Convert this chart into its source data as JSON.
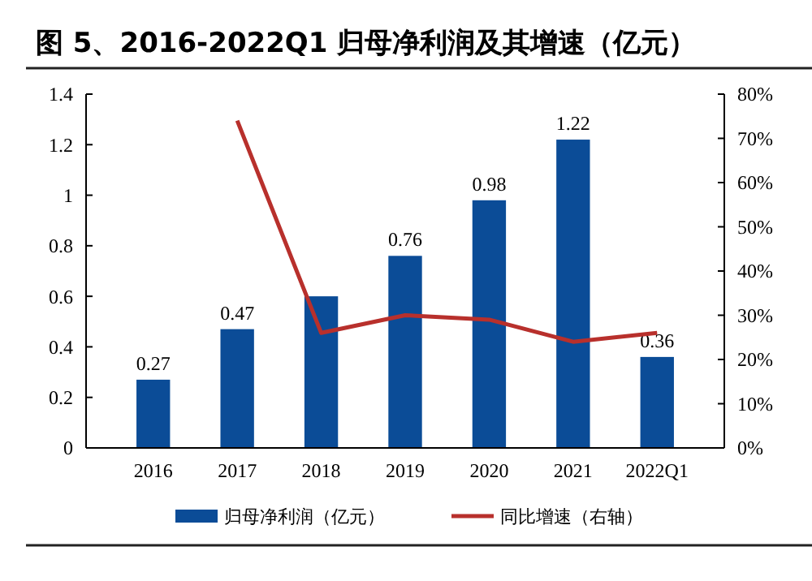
{
  "chart_data": {
    "type": "bar",
    "title": "图 5、2016-2022Q1 归母净利润及其增速（亿元）",
    "categories": [
      "2016",
      "2017",
      "2018",
      "2019",
      "2020",
      "2021",
      "2022Q1"
    ],
    "series": [
      {
        "name": "归母净利润（亿元）",
        "color": "#0b4c97",
        "values": [
          0.27,
          0.47,
          0.6,
          0.76,
          0.98,
          1.22,
          0.36
        ],
        "value_labels": [
          "0.27",
          "0.47",
          null,
          "0.76",
          "0.98",
          "1.22",
          "0.36"
        ]
      },
      {
        "name": "同比增速（右轴）",
        "type": "line",
        "axis": "y2",
        "color": "#b8302c",
        "values": [
          null,
          74,
          26,
          30,
          29,
          24,
          26
        ]
      }
    ],
    "ylim": [
      0,
      1.4
    ],
    "yticks": [
      0,
      0.2,
      0.4,
      0.6,
      0.8,
      {
        "value": 1,
        "label": "1"
      },
      1.2,
      1.4
    ],
    "y2lim": [
      0,
      80
    ],
    "y2ticks": [
      {
        "value": 0,
        "label": "0%"
      },
      {
        "value": 10,
        "label": "10%"
      },
      {
        "value": 20,
        "label": "20%"
      },
      {
        "value": 30,
        "label": "30%"
      },
      {
        "value": 40,
        "label": "40%"
      },
      {
        "value": 50,
        "label": "50%"
      },
      {
        "value": 60,
        "label": "60%"
      },
      {
        "value": 70,
        "label": "70%"
      },
      {
        "value": 80,
        "label": "80%"
      }
    ],
    "legend": "bottom",
    "grid": false
  }
}
